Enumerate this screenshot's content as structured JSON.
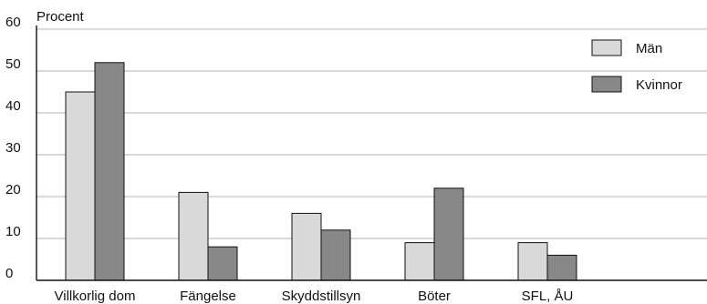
{
  "chart_data": {
    "type": "bar",
    "ylabel": "Procent",
    "xlabel": "",
    "ylim": [
      0,
      60
    ],
    "yticks": [
      0,
      10,
      20,
      30,
      40,
      50,
      60
    ],
    "grid": true,
    "legend_position": "top-right",
    "categories": [
      "Villkorlig dom",
      "Fängelse",
      "Skyddstillsyn",
      "Böter",
      "SFL, ÅU"
    ],
    "series": [
      {
        "name": "Män",
        "color": "#d9d9d9",
        "values": [
          45,
          21,
          16,
          9,
          9
        ]
      },
      {
        "name": "Kvinnor",
        "color": "#888888",
        "values": [
          52,
          8,
          12,
          22,
          6
        ]
      }
    ]
  }
}
